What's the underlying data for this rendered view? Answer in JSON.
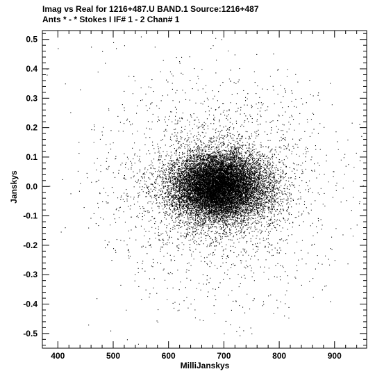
{
  "chart_data": {
    "type": "scatter",
    "title": "Imag vs Real for 1216+487.U BAND.1   Source:1216+487",
    "subtitle": "Ants * - *     Stokes I   IF# 1 - 2   Chan# 1",
    "xlabel": "MilliJanskys",
    "ylabel": "Janskys",
    "xlim": [
      372,
      958
    ],
    "ylim": [
      -0.55,
      0.53
    ],
    "xticks": [
      400,
      500,
      600,
      700,
      800,
      900
    ],
    "yticks": [
      0.5,
      0.4,
      0.3,
      0.2,
      0.1,
      0.0,
      -0.1,
      -0.2,
      -0.3,
      -0.4,
      -0.5
    ],
    "xtick_labels": [
      "400",
      "500",
      "600",
      "700",
      "800",
      "900"
    ],
    "ytick_labels": [
      "0.5",
      "0.4",
      "0.3",
      "0.2",
      "0.1",
      "0.0",
      "-0.1",
      "-0.2",
      "-0.3",
      "-0.4",
      "-0.5"
    ],
    "grid": false,
    "point_color": "#000000",
    "distribution": {
      "core_center": [
        690,
        0.0
      ],
      "core_std": [
        42,
        0.055
      ],
      "core_count": 14000,
      "halo_std": [
        85,
        0.14
      ],
      "halo_count": 2600,
      "outlier_count": 380
    },
    "outliers": [
      {
        "x": 380,
        "y": 0.38
      },
      {
        "x": 380,
        "y": 0.4
      },
      {
        "x": 400,
        "y": 0.47
      },
      {
        "x": 413,
        "y": 0.35
      },
      {
        "x": 440,
        "y": 0.33
      },
      {
        "x": 460,
        "y": 0.475
      },
      {
        "x": 472,
        "y": 0.39
      },
      {
        "x": 480,
        "y": 0.46
      },
      {
        "x": 485,
        "y": 0.42
      },
      {
        "x": 500,
        "y": 0.49
      },
      {
        "x": 505,
        "y": 0.47
      },
      {
        "x": 520,
        "y": 0.48
      },
      {
        "x": 550,
        "y": 0.51
      },
      {
        "x": 575,
        "y": 0.475
      },
      {
        "x": 590,
        "y": 0.43
      },
      {
        "x": 620,
        "y": 0.42
      },
      {
        "x": 680,
        "y": 0.48
      },
      {
        "x": 455,
        "y": -0.47
      },
      {
        "x": 470,
        "y": -0.38
      },
      {
        "x": 495,
        "y": -0.49
      },
      {
        "x": 525,
        "y": -0.52
      },
      {
        "x": 545,
        "y": -0.535
      },
      {
        "x": 580,
        "y": -0.46
      },
      {
        "x": 700,
        "y": -0.5
      },
      {
        "x": 748,
        "y": -0.48
      },
      {
        "x": 750,
        "y": -0.5
      },
      {
        "x": 860,
        "y": 0.25
      },
      {
        "x": 920,
        "y": 0.07
      },
      {
        "x": 930,
        "y": -0.08
      },
      {
        "x": 940,
        "y": -0.13
      },
      {
        "x": 945,
        "y": -0.05
      },
      {
        "x": 900,
        "y": -0.25
      },
      {
        "x": 870,
        "y": -0.26
      },
      {
        "x": 480,
        "y": -0.05
      },
      {
        "x": 490,
        "y": -0.03
      },
      {
        "x": 500,
        "y": -0.02
      },
      {
        "x": 455,
        "y": -0.14
      },
      {
        "x": 500,
        "y": -0.21
      }
    ]
  }
}
